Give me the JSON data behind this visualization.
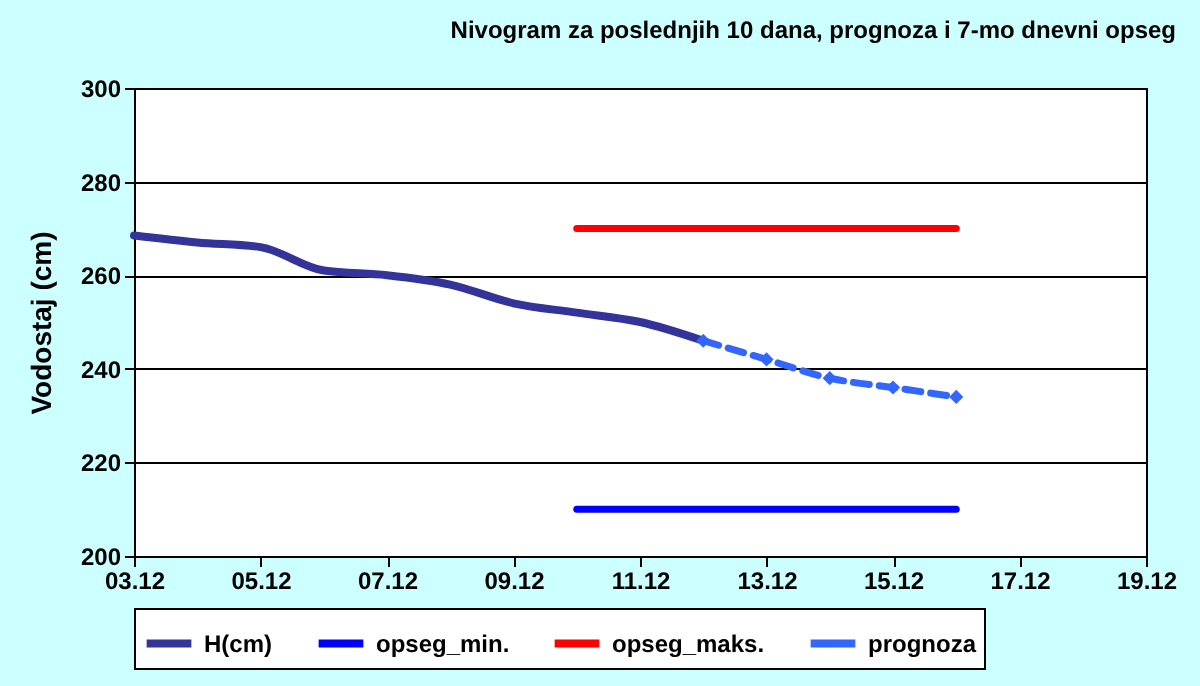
{
  "chart_data": {
    "type": "line",
    "title": "Nivogram za poslednjih 10 dana, prognoza i 7-mo dnevni opseg",
    "ylabel": "Vodostaj (cm)",
    "xlim": [
      "--12-03",
      "--12-19"
    ],
    "xticks": [
      {
        "value": "--12-03",
        "label": "03.12"
      },
      {
        "value": "--12-05",
        "label": "05.12"
      },
      {
        "value": "--12-07",
        "label": "07.12"
      },
      {
        "value": "--12-09",
        "label": "09.12"
      },
      {
        "value": "--12-11",
        "label": "11.12"
      },
      {
        "value": "--12-13",
        "label": "13.12"
      },
      {
        "value": "--12-15",
        "label": "15.12"
      },
      {
        "value": "--12-17",
        "label": "17.12"
      },
      {
        "value": "--12-19",
        "label": "19.12"
      }
    ],
    "ylim": [
      200,
      300
    ],
    "yticks": [
      200,
      220,
      240,
      260,
      280,
      300
    ],
    "grid": "y",
    "legend": "bottom",
    "series": [
      {
        "name": "H(cm)",
        "color": "#333399",
        "x": [
          "--12-03",
          "--12-04",
          "--12-05",
          "--12-06",
          "--12-07",
          "--12-08",
          "--12-09",
          "--12-10",
          "--12-11",
          "--12-12"
        ],
        "values": [
          268.5,
          267,
          266,
          261,
          260,
          258,
          254,
          252,
          250,
          246
        ]
      },
      {
        "name": "opseg_min.",
        "color": "#0000ff",
        "x": [
          "--12-10",
          "--12-16"
        ],
        "values": [
          210,
          210
        ]
      },
      {
        "name": "opseg_maks.",
        "color": "#ff0000",
        "x": [
          "--12-10",
          "--12-16"
        ],
        "values": [
          270,
          270
        ]
      },
      {
        "name": "prognoza",
        "color": "#3366ff",
        "line_style": "dashed",
        "marker": "diamond",
        "x": [
          "--12-12",
          "--12-13",
          "--12-14",
          "--12-15",
          "--12-16"
        ],
        "values": [
          246,
          242,
          238,
          236,
          234
        ]
      }
    ]
  }
}
